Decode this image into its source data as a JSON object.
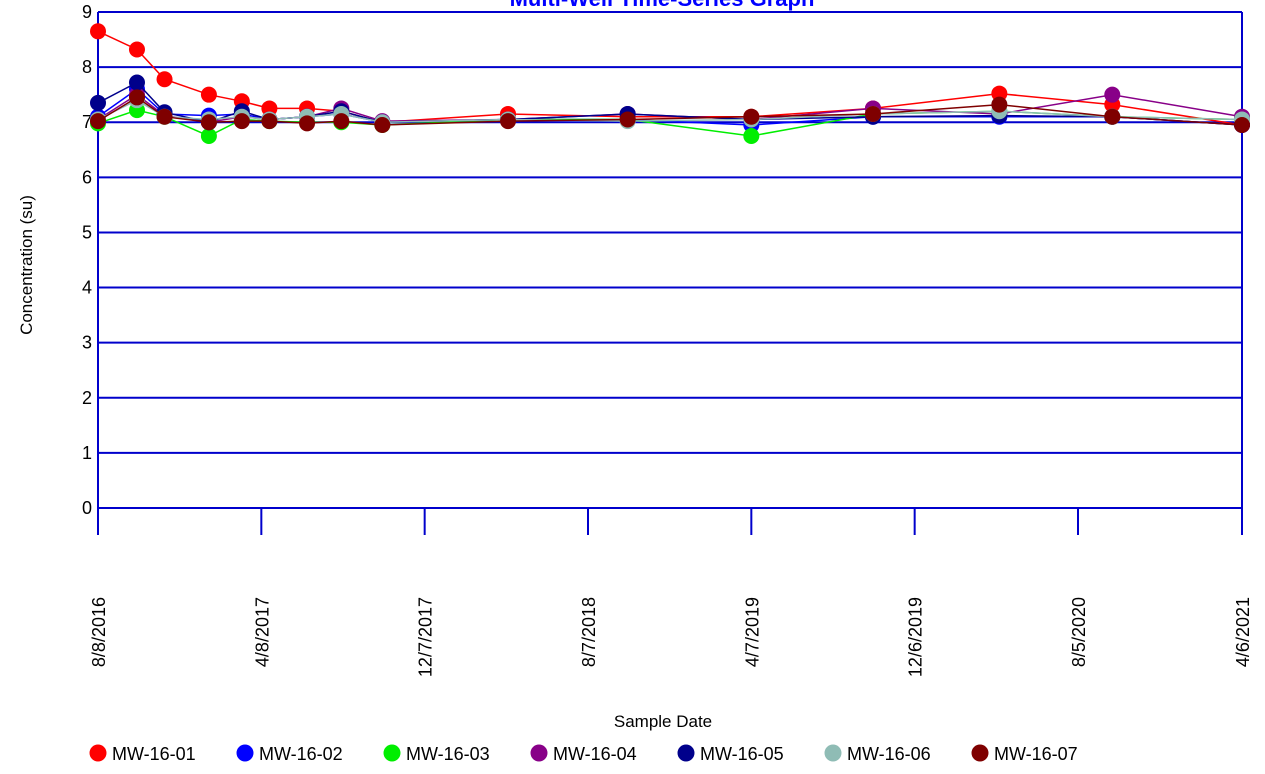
{
  "chart_data": {
    "type": "line",
    "title": "Multi-Well Time-Series Graph",
    "xlabel": "Sample Date",
    "ylabel": "Concentration (su)",
    "ylim": [
      0,
      9
    ],
    "xlim": [
      "2016-08-08",
      "2021-04-06"
    ],
    "y_ticks": [
      "0",
      "1",
      "2",
      "3",
      "4",
      "5",
      "6",
      "7",
      "8",
      "9"
    ],
    "x_ticks": [
      {
        "date": "2016-08-08",
        "label": "8/8/2016"
      },
      {
        "date": "2017-04-08",
        "label": "4/8/2017"
      },
      {
        "date": "2017-12-07",
        "label": "12/7/2017"
      },
      {
        "date": "2018-08-07",
        "label": "8/7/2018"
      },
      {
        "date": "2019-04-07",
        "label": "4/7/2019"
      },
      {
        "date": "2019-12-06",
        "label": "12/6/2019"
      },
      {
        "date": "2020-08-05",
        "label": "8/5/2020"
      },
      {
        "date": "2021-04-06",
        "label": "4/6/2021"
      }
    ],
    "grid": "horizontal",
    "legend_position": "bottom",
    "series": [
      {
        "name": "MW-16-01",
        "color": "#ff0000",
        "x": [
          "2016-08-08",
          "2016-10-05",
          "2016-11-15",
          "2017-01-20",
          "2017-03-10",
          "2017-04-20",
          "2017-06-15",
          "2017-08-05",
          "2017-10-05",
          "2018-04-10",
          "2018-10-05",
          "2019-04-07",
          "2019-10-05",
          "2020-04-10",
          "2020-09-25",
          "2021-04-06"
        ],
        "y": [
          8.65,
          8.32,
          7.78,
          7.5,
          7.38,
          7.25,
          7.25,
          7.2,
          7.0,
          7.15,
          7.1,
          7.1,
          7.25,
          7.52,
          7.32,
          6.95
        ]
      },
      {
        "name": "MW-16-02",
        "color": "#0000ff",
        "x": [
          "2016-08-08",
          "2016-10-05",
          "2016-11-15",
          "2017-01-20",
          "2017-03-10",
          "2017-04-20",
          "2017-06-15",
          "2017-08-05",
          "2017-10-05",
          "2018-04-10",
          "2018-10-05",
          "2019-04-07",
          "2019-10-05",
          "2020-04-10",
          "2020-09-25",
          "2021-04-06"
        ],
        "y": [
          7.1,
          7.6,
          7.15,
          7.12,
          7.15,
          7.05,
          7.1,
          7.15,
          7.0,
          7.05,
          7.05,
          6.95,
          7.1,
          7.1,
          7.1,
          6.95
        ]
      },
      {
        "name": "MW-16-03",
        "color": "#00ee00",
        "x": [
          "2016-08-08",
          "2016-10-05",
          "2016-11-15",
          "2017-01-20",
          "2017-03-10",
          "2017-04-20",
          "2017-06-15",
          "2017-08-05",
          "2017-10-05",
          "2018-04-10",
          "2018-10-05",
          "2019-04-07",
          "2019-10-05",
          "2020-04-10",
          "2020-09-25",
          "2021-04-06"
        ],
        "y": [
          6.98,
          7.22,
          7.1,
          6.75,
          7.05,
          7.02,
          7.0,
          7.0,
          6.95,
          7.05,
          7.05,
          6.75,
          7.15,
          7.2,
          7.1,
          7.05
        ]
      },
      {
        "name": "MW-16-04",
        "color": "#880088",
        "x": [
          "2016-08-08",
          "2016-10-05",
          "2016-11-15",
          "2017-01-20",
          "2017-03-10",
          "2017-04-20",
          "2017-06-15",
          "2017-08-05",
          "2017-10-05",
          "2018-04-10",
          "2018-10-05",
          "2019-04-07",
          "2019-10-05",
          "2020-04-10",
          "2020-09-25",
          "2021-04-06"
        ],
        "y": [
          7.05,
          7.5,
          7.12,
          7.0,
          7.1,
          7.05,
          7.1,
          7.25,
          7.02,
          7.05,
          7.15,
          7.05,
          7.25,
          7.15,
          7.5,
          7.1
        ]
      },
      {
        "name": "MW-16-05",
        "color": "#00008b",
        "x": [
          "2016-08-08",
          "2016-10-05",
          "2016-11-15",
          "2017-01-20",
          "2017-03-10",
          "2017-04-20",
          "2017-06-15",
          "2017-08-05",
          "2017-10-05",
          "2018-04-10",
          "2018-10-05",
          "2019-04-07",
          "2019-10-05",
          "2020-04-10",
          "2020-09-25",
          "2021-04-06"
        ],
        "y": [
          7.35,
          7.72,
          7.18,
          7.0,
          7.2,
          7.05,
          7.1,
          7.2,
          7.0,
          7.05,
          7.15,
          7.05,
          7.1,
          7.12,
          7.1,
          6.95
        ]
      },
      {
        "name": "MW-16-06",
        "color": "#8fbcb5",
        "x": [
          "2016-08-08",
          "2016-10-05",
          "2016-11-15",
          "2017-01-20",
          "2017-03-10",
          "2017-04-20",
          "2017-06-15",
          "2017-08-05",
          "2017-10-05",
          "2018-04-10",
          "2018-10-05",
          "2019-04-07",
          "2019-10-05",
          "2020-04-10",
          "2020-09-25",
          "2021-04-06"
        ],
        "y": [
          7.05,
          7.4,
          7.1,
          7.05,
          7.1,
          7.05,
          7.1,
          7.15,
          7.0,
          7.05,
          7.02,
          7.05,
          7.15,
          7.2,
          7.1,
          7.05
        ]
      },
      {
        "name": "MW-16-07",
        "color": "#7f0000",
        "x": [
          "2016-08-08",
          "2016-10-05",
          "2016-11-15",
          "2017-01-20",
          "2017-03-10",
          "2017-04-20",
          "2017-06-15",
          "2017-08-05",
          "2017-10-05",
          "2018-04-10",
          "2018-10-05",
          "2019-04-07",
          "2019-10-05",
          "2020-04-10",
          "2020-09-25",
          "2021-04-06"
        ],
        "y": [
          7.02,
          7.45,
          7.1,
          7.0,
          7.02,
          7.02,
          6.98,
          7.02,
          6.95,
          7.02,
          7.05,
          7.1,
          7.15,
          7.32,
          7.1,
          6.95
        ]
      }
    ]
  }
}
